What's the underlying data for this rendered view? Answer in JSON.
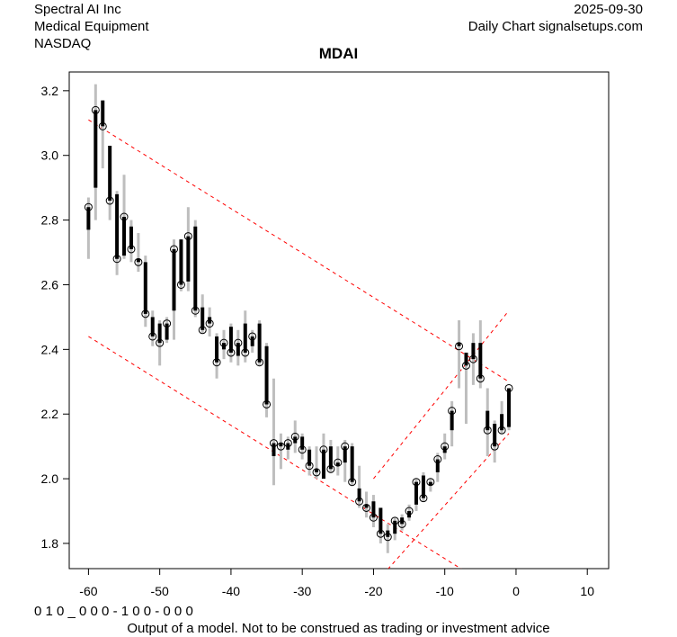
{
  "header": {
    "company": "Spectral AI Inc",
    "sector": "Medical Equipment",
    "exchange": "NASDAQ",
    "date": "2025-09-30",
    "source": "Daily Chart signalsetups.com"
  },
  "footer": {
    "code": "0 1 0 _ 0 0 0 - 1 0 0 - 0 0 0",
    "disclaimer": "Output of a model. Not to be construed as trading or investment advice"
  },
  "chart_data": {
    "type": "ohlc",
    "title": "MDAI",
    "xlim": [
      -62.7,
      13
    ],
    "ylim": [
      1.722,
      3.258
    ],
    "xticks": [
      -60,
      -50,
      -40,
      -30,
      -20,
      -10,
      0,
      10
    ],
    "yticks": [
      1.8,
      2.0,
      2.2,
      2.4,
      2.6,
      2.8,
      3.0,
      3.2
    ],
    "colors": {
      "body": "#000000",
      "range": "#bebebe",
      "trend": "#ff0000"
    },
    "x": [
      -60,
      -59,
      -58,
      -57,
      -56,
      -55,
      -54,
      -53,
      -52,
      -51,
      -50,
      -49,
      -48,
      -47,
      -46,
      -45,
      -44,
      -43,
      -42,
      -41,
      -40,
      -39,
      -38,
      -37,
      -36,
      -35,
      -34,
      -33,
      -32,
      -31,
      -30,
      -29,
      -28,
      -27,
      -26,
      -25,
      -24,
      -23,
      -22,
      -21,
      -20,
      -19,
      -18,
      -17,
      -16,
      -15,
      -14,
      -13,
      -12,
      -11,
      -10,
      -9,
      -8,
      -7,
      -6,
      -5,
      -4,
      -3,
      -2,
      -1
    ],
    "open": [
      2.77,
      2.9,
      3.17,
      3.03,
      2.88,
      2.69,
      2.78,
      2.68,
      2.67,
      2.5,
      2.48,
      2.43,
      2.52,
      2.74,
      2.61,
      2.78,
      2.53,
      2.5,
      2.44,
      2.4,
      2.47,
      2.38,
      2.48,
      2.41,
      2.48,
      2.41,
      2.07,
      2.11,
      2.09,
      2.11,
      2.13,
      2.09,
      2.03,
      2.0,
      2.1,
      2.04,
      2.05,
      2.1,
      1.97,
      1.92,
      1.93,
      1.91,
      1.84,
      1.83,
      1.88,
      1.88,
      1.92,
      2.01,
      1.98,
      2.02,
      2.08,
      2.15,
      2.42,
      2.39,
      2.42,
      2.42,
      2.21,
      2.17,
      2.2,
      2.16
    ],
    "high": [
      2.87,
      3.22,
      3.17,
      3.03,
      2.89,
      2.94,
      2.8,
      2.76,
      2.69,
      2.52,
      2.49,
      2.5,
      2.74,
      2.74,
      2.84,
      2.8,
      2.57,
      2.53,
      2.45,
      2.46,
      2.48,
      2.46,
      2.52,
      2.46,
      2.49,
      2.42,
      2.31,
      2.14,
      2.13,
      2.18,
      2.14,
      2.1,
      2.1,
      2.14,
      2.12,
      2.1,
      2.12,
      2.11,
      2.04,
      1.96,
      1.95,
      1.91,
      1.86,
      1.88,
      1.89,
      1.92,
      2.0,
      2.02,
      2.0,
      2.08,
      2.14,
      2.24,
      2.49,
      2.39,
      2.45,
      2.49,
      2.28,
      2.18,
      2.24,
      2.28
    ],
    "low": [
      2.68,
      2.8,
      2.96,
      2.8,
      2.63,
      2.68,
      2.67,
      2.64,
      2.47,
      2.41,
      2.35,
      2.42,
      2.43,
      2.58,
      2.58,
      2.5,
      2.45,
      2.44,
      2.31,
      2.37,
      2.36,
      2.35,
      2.36,
      2.39,
      2.35,
      2.19,
      1.98,
      2.03,
      2.06,
      2.08,
      2.06,
      2.01,
      2.0,
      2.01,
      2.02,
      2.01,
      1.99,
      1.98,
      1.91,
      1.88,
      1.85,
      1.8,
      1.77,
      1.81,
      1.84,
      1.87,
      1.9,
      1.93,
      1.96,
      1.99,
      2.06,
      2.1,
      2.28,
      2.17,
      2.29,
      2.28,
      2.07,
      2.05,
      2.14,
      2.15
    ],
    "close": [
      2.84,
      3.14,
      3.09,
      2.86,
      2.68,
      2.81,
      2.71,
      2.67,
      2.51,
      2.44,
      2.42,
      2.48,
      2.71,
      2.6,
      2.75,
      2.52,
      2.46,
      2.48,
      2.36,
      2.42,
      2.39,
      2.42,
      2.39,
      2.44,
      2.36,
      2.23,
      2.11,
      2.1,
      2.11,
      2.13,
      2.09,
      2.04,
      2.02,
      2.09,
      2.03,
      2.05,
      2.1,
      1.99,
      1.93,
      1.91,
      1.88,
      1.83,
      1.82,
      1.87,
      1.86,
      1.9,
      1.99,
      1.94,
      1.99,
      2.06,
      2.1,
      2.21,
      2.41,
      2.35,
      2.37,
      2.31,
      2.15,
      2.1,
      2.15,
      2.28
    ],
    "trend_lines": [
      {
        "name": "upper-falling",
        "from": [
          -60,
          3.11
        ],
        "to": [
          -1,
          2.3
        ]
      },
      {
        "name": "lower-falling",
        "from": [
          -60,
          2.44
        ],
        "to": [
          -7.6,
          1.72
        ]
      },
      {
        "name": "upper-rising",
        "from": [
          -20,
          2.0
        ],
        "to": [
          -1,
          2.52
        ]
      },
      {
        "name": "lower-rising",
        "from": [
          -18,
          1.72
        ],
        "to": [
          -1,
          2.14
        ]
      }
    ]
  }
}
